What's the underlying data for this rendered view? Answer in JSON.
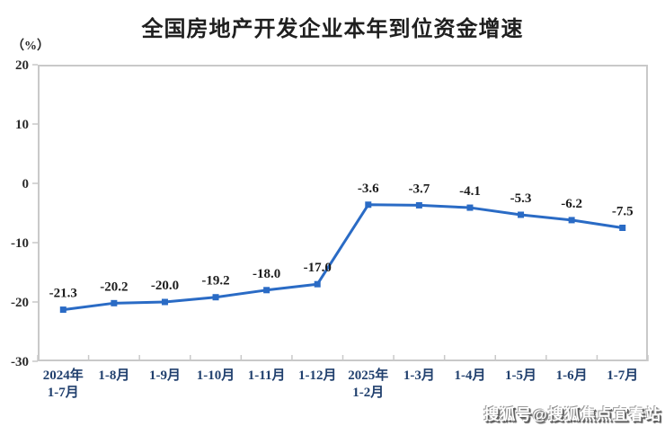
{
  "page": {
    "title": "全国房地产开发企业本年到位资金增速",
    "unit_label": "（%）",
    "watermark": "搜狐号@搜狐焦点宜春站"
  },
  "chart_data": {
    "type": "line",
    "title": "全国房地产开发企业本年到位资金增速",
    "unit": "（%）",
    "categories": [
      "2024年\n1-7月",
      "1-8月",
      "1-9月",
      "1-10月",
      "1-11月",
      "1-12月",
      "2025年\n1-2月",
      "1-3月",
      "1-4月",
      "1-5月",
      "1-6月",
      "1-7月"
    ],
    "values": [
      -21.3,
      -20.2,
      -20.0,
      -19.2,
      -18.0,
      -17.0,
      -3.6,
      -3.7,
      -4.1,
      -5.3,
      -6.2,
      -7.5
    ],
    "data_labels": [
      "-21.3",
      "-20.2",
      "-20.0",
      "-19.2",
      "-18.0",
      "-17.0",
      "-3.6",
      "-3.7",
      "-4.1",
      "-5.3",
      "-6.2",
      "-7.5"
    ],
    "y_ticks": [
      20,
      10,
      0,
      -10,
      -20,
      -30
    ],
    "ylim": [
      -30,
      20
    ],
    "xlabel": "",
    "ylabel": "（%）",
    "grid": false,
    "legend": "none",
    "line_color": "#2a6bc5",
    "marker": "square",
    "axis_color": "#c9c9c9"
  }
}
